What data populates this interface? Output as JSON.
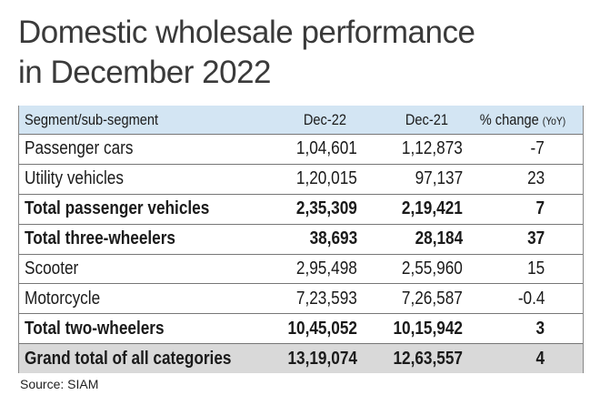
{
  "title": [
    "Domestic wholesale performance",
    "in December 2022"
  ],
  "table": {
    "header": [
      "Segment/sub-segment",
      "Dec-22",
      "Dec-21",
      "% change"
    ],
    "header_note": "(YoY)",
    "rows": [
      {
        "cells": [
          "Passenger cars",
          "1,04,601",
          "1,12,873",
          "-7"
        ],
        "bold": false,
        "highlight": false
      },
      {
        "cells": [
          "Utility vehicles",
          "1,20,015",
          "97,137",
          "23"
        ],
        "bold": false,
        "highlight": false
      },
      {
        "cells": [
          "Total passenger vehicles",
          "2,35,309",
          "2,19,421",
          "7"
        ],
        "bold": true,
        "highlight": false
      },
      {
        "cells": [
          "Total three-wheelers",
          "38,693",
          "28,184",
          "37"
        ],
        "bold": true,
        "highlight": false
      },
      {
        "cells": [
          "Scooter",
          "2,95,498",
          "2,55,960",
          "15"
        ],
        "bold": false,
        "highlight": false
      },
      {
        "cells": [
          "Motorcycle",
          "7,23,593",
          "7,26,587",
          "-0.4"
        ],
        "bold": false,
        "highlight": false
      },
      {
        "cells": [
          "Total two-wheelers",
          "10,45,052",
          "10,15,942",
          "3"
        ],
        "bold": true,
        "highlight": false
      },
      {
        "cells": [
          "Grand total of all categories",
          "13,19,074",
          "12,63,557",
          "4"
        ],
        "bold": true,
        "highlight": true
      }
    ]
  },
  "source": "Source: SIAM"
}
